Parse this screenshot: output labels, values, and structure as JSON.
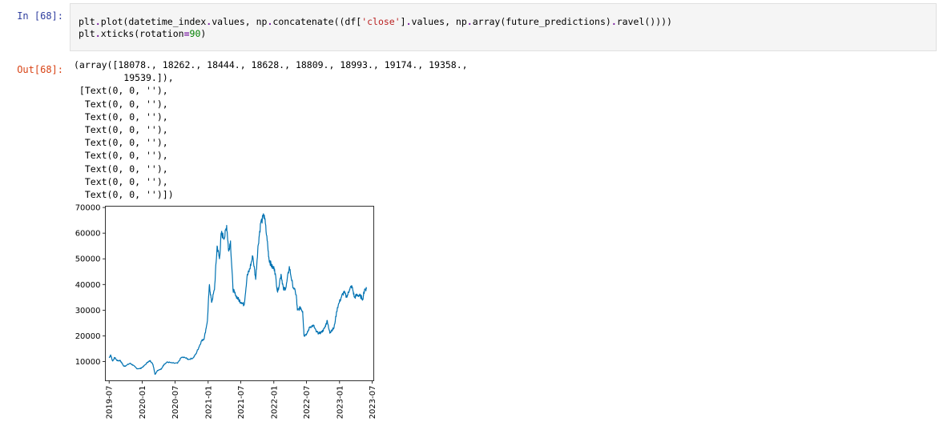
{
  "cell": {
    "in_prompt": "In [68]:",
    "out_prompt": "Out[68]:",
    "code_lines": [
      [
        {
          "t": "plt",
          "c": "var"
        },
        {
          "t": ".",
          "c": "op"
        },
        {
          "t": "plot(datetime_index",
          "c": "var"
        },
        {
          "t": ".",
          "c": "op"
        },
        {
          "t": "values, np",
          "c": "var"
        },
        {
          "t": ".",
          "c": "op"
        },
        {
          "t": "concatenate((df[",
          "c": "var"
        },
        {
          "t": "'close'",
          "c": "str"
        },
        {
          "t": "]",
          "c": "var"
        },
        {
          "t": ".",
          "c": "op"
        },
        {
          "t": "values, np",
          "c": "var"
        },
        {
          "t": ".",
          "c": "op"
        },
        {
          "t": "array(future_predictions)",
          "c": "var"
        },
        {
          "t": ".",
          "c": "op"
        },
        {
          "t": "ravel())))",
          "c": "var"
        }
      ],
      [
        {
          "t": "plt",
          "c": "var"
        },
        {
          "t": ".",
          "c": "op"
        },
        {
          "t": "xticks(rotation",
          "c": "var"
        },
        {
          "t": "=",
          "c": "op"
        },
        {
          "t": "90",
          "c": "num"
        },
        {
          "t": ")",
          "c": "var"
        }
      ]
    ],
    "output_lines": [
      "(array([18078., 18262., 18444., 18628., 18809., 18993., 19174., 19358.,",
      "         19539.]),",
      " [Text(0, 0, ''),",
      "  Text(0, 0, ''),",
      "  Text(0, 0, ''),",
      "  Text(0, 0, ''),",
      "  Text(0, 0, ''),",
      "  Text(0, 0, ''),",
      "  Text(0, 0, ''),",
      "  Text(0, 0, ''),",
      "  Text(0, 0, '')])"
    ]
  },
  "chart_data": {
    "type": "line",
    "title": "",
    "xlabel": "",
    "ylabel": "",
    "line_color": "#0072b2",
    "grid": false,
    "legend": "none",
    "x_tick_rotation": 90,
    "xlim": [
      "2019-06-10",
      "2023-07-10"
    ],
    "ylim": [
      2500,
      70500
    ],
    "y_ticks": [
      10000,
      20000,
      30000,
      40000,
      50000,
      60000,
      70000
    ],
    "x_ticks": [
      "2019-07",
      "2020-01",
      "2020-07",
      "2021-01",
      "2021-07",
      "2022-01",
      "2022-07",
      "2023-01",
      "2023-07"
    ],
    "series": [
      {
        "x": [
          "2019-07-01",
          "2019-07-10",
          "2019-07-20",
          "2019-08-01",
          "2019-08-15",
          "2019-09-01",
          "2019-09-20",
          "2019-10-01",
          "2019-10-25",
          "2019-11-10",
          "2019-12-01",
          "2019-12-20",
          "2020-01-10",
          "2020-02-01",
          "2020-02-15",
          "2020-03-01",
          "2020-03-12",
          "2020-03-25",
          "2020-04-15",
          "2020-05-01",
          "2020-05-20",
          "2020-06-15",
          "2020-07-15",
          "2020-08-05",
          "2020-08-25",
          "2020-09-15",
          "2020-10-10",
          "2020-10-25",
          "2020-11-10",
          "2020-11-25",
          "2020-12-10",
          "2020-12-28",
          "2021-01-08",
          "2021-01-20",
          "2021-02-05",
          "2021-02-20",
          "2021-03-05",
          "2021-03-15",
          "2021-04-01",
          "2021-04-14",
          "2021-04-25",
          "2021-05-05",
          "2021-05-19",
          "2021-06-01",
          "2021-06-20",
          "2021-07-05",
          "2021-07-20",
          "2021-08-05",
          "2021-08-20",
          "2021-09-06",
          "2021-09-22",
          "2021-10-05",
          "2021-10-20",
          "2021-11-09",
          "2021-11-25",
          "2021-12-05",
          "2021-12-20",
          "2022-01-05",
          "2022-01-22",
          "2022-02-10",
          "2022-02-24",
          "2022-03-10",
          "2022-03-28",
          "2022-04-15",
          "2022-05-05",
          "2022-05-12",
          "2022-05-30",
          "2022-06-10",
          "2022-06-18",
          "2022-07-05",
          "2022-07-20",
          "2022-08-10",
          "2022-08-25",
          "2022-09-10",
          "2022-09-25",
          "2022-10-10",
          "2022-10-25",
          "2022-11-08",
          "2022-11-15",
          "2022-12-01",
          "2022-12-20",
          "2023-01-10",
          "2023-01-25",
          "2023-02-10",
          "2023-02-25",
          "2023-03-10",
          "2023-03-25",
          "2023-04-10",
          "2023-04-25",
          "2023-05-10",
          "2023-05-20",
          "2023-06-01"
        ],
        "y": [
          11500,
          12500,
          10200,
          11500,
          10300,
          10400,
          8200,
          8300,
          9300,
          8600,
          7300,
          7200,
          8200,
          9800,
          10300,
          8800,
          5000,
          6500,
          7000,
          8900,
          9800,
          9400,
          9300,
          11600,
          11500,
          10800,
          11400,
          13000,
          15500,
          18000,
          19000,
          26000,
          40000,
          33000,
          38000,
          55000,
          50000,
          60000,
          58000,
          63000,
          53000,
          57000,
          38000,
          36000,
          34000,
          33000,
          32000,
          43000,
          46000,
          51000,
          42000,
          55000,
          64000,
          67000,
          57000,
          50000,
          47000,
          46000,
          37000,
          44000,
          38000,
          39000,
          47000,
          40000,
          36000,
          30000,
          31000,
          29500,
          20000,
          21000,
          23500,
          24000,
          21500,
          21000,
          21500,
          23000,
          26000,
          21000,
          22000,
          23000,
          31000,
          35000,
          37000,
          35000,
          38000,
          39500,
          35000,
          36000,
          35500,
          34500,
          38000,
          38500
        ]
      }
    ]
  }
}
